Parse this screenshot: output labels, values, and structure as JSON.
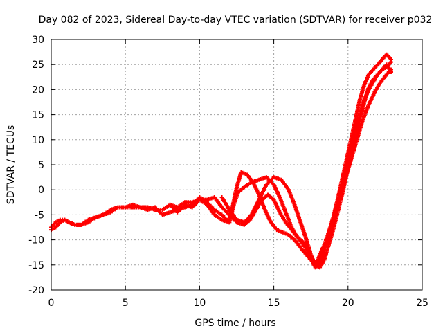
{
  "chart_data": {
    "type": "scatter",
    "title": "Day 082 of 2023, Sidereal Day-to-day VTEC variation (SDTVAR) for receiver p032",
    "xlabel": "GPS time / hours",
    "ylabel": "SDTVAR / TECUs",
    "xlim": [
      0,
      25
    ],
    "ylim": [
      -20,
      30
    ],
    "xticks": [
      0,
      5,
      10,
      15,
      20,
      25
    ],
    "yticks": [
      -20,
      -15,
      -10,
      -5,
      0,
      5,
      10,
      15,
      20,
      25,
      30
    ],
    "grid": true,
    "legend": "none",
    "marker": "+",
    "color": "#ff0000",
    "series": [
      {
        "name": "trace-a",
        "x": [
          0.0,
          0.3,
          0.6,
          0.9,
          1.2,
          1.6,
          2.0,
          2.5,
          3.0,
          3.5,
          4.0,
          4.5,
          5.0,
          5.5,
          6.0,
          6.5,
          7.0,
          7.5,
          8.0,
          8.5,
          9.0,
          9.5,
          10.0,
          10.5,
          11.0,
          11.5,
          12.0,
          12.3,
          12.6,
          13.0,
          13.5,
          14.0,
          14.5,
          15.0,
          15.4,
          15.8,
          16.2,
          16.6,
          17.0,
          17.3,
          17.6,
          17.8,
          18.0,
          18.3,
          18.6,
          19.0,
          19.3,
          19.6,
          19.9,
          20.2,
          20.5,
          20.8,
          21.1,
          21.4,
          21.7,
          22.0,
          22.3,
          22.6,
          22.9
        ],
        "y": [
          -7.5,
          -6.5,
          -6.0,
          -6.0,
          -6.5,
          -7.0,
          -7.0,
          -6.0,
          -5.5,
          -5.0,
          -4.0,
          -3.5,
          -3.5,
          -3.5,
          -3.5,
          -3.5,
          -4.0,
          -4.0,
          -3.0,
          -3.5,
          -2.5,
          -2.5,
          -2.0,
          -3.0,
          -5.0,
          -6.0,
          -6.5,
          -3.0,
          -0.5,
          0.5,
          1.5,
          2.0,
          2.5,
          1.0,
          -1.5,
          -4.5,
          -7.5,
          -9.5,
          -10.5,
          -12.0,
          -14.0,
          -15.5,
          -15.0,
          -13.5,
          -10.0,
          -6.0,
          -2.0,
          2.0,
          6.0,
          10.0,
          14.0,
          18.0,
          21.0,
          23.0,
          24.0,
          25.0,
          26.0,
          27.0,
          26.0
        ]
      },
      {
        "name": "trace-b",
        "x": [
          0.0,
          0.3,
          0.6,
          0.9,
          1.2,
          1.6,
          2.0,
          2.5,
          3.0,
          3.5,
          4.0,
          4.5,
          5.0,
          5.5,
          6.0,
          6.5,
          7.0,
          7.5,
          8.0,
          8.5,
          9.0,
          9.5,
          10.0,
          10.5,
          11.0,
          11.5,
          12.0,
          12.5,
          12.8,
          13.2,
          13.6,
          14.0,
          14.4,
          14.8,
          15.2,
          15.6,
          16.0,
          16.4,
          16.8,
          17.2,
          17.5,
          17.7,
          17.9,
          18.1,
          18.4,
          18.7,
          19.0,
          19.3,
          19.6,
          19.9,
          20.2,
          20.5,
          20.8,
          21.1,
          21.4,
          21.7,
          22.0,
          22.3,
          22.6,
          22.9
        ],
        "y": [
          -8.0,
          -7.5,
          -6.5,
          -6.0,
          -6.5,
          -7.0,
          -7.0,
          -6.5,
          -5.5,
          -5.0,
          -4.5,
          -3.5,
          -3.5,
          -3.0,
          -3.5,
          -4.0,
          -3.5,
          -5.0,
          -4.5,
          -4.0,
          -3.5,
          -3.0,
          -1.5,
          -2.5,
          -4.0,
          -5.0,
          -6.5,
          0.5,
          3.5,
          3.0,
          1.5,
          -1.0,
          -4.0,
          -6.5,
          -8.0,
          -8.5,
          -9.0,
          -10.0,
          -11.5,
          -13.0,
          -14.0,
          -15.0,
          -14.5,
          -13.0,
          -11.0,
          -8.5,
          -5.5,
          -2.0,
          1.0,
          4.5,
          8.0,
          12.0,
          15.0,
          18.0,
          20.0,
          21.5,
          23.0,
          24.0,
          24.5,
          25.5
        ]
      },
      {
        "name": "trace-c",
        "x": [
          8.0,
          8.5,
          9.0,
          9.5,
          10.0,
          10.5,
          11.0,
          11.5,
          12.0,
          12.5,
          13.0,
          13.4,
          13.8,
          14.2,
          14.6,
          15.0,
          15.4,
          15.8,
          16.2,
          16.6,
          17.0,
          17.3,
          17.6,
          17.9,
          18.2,
          18.6,
          19.0,
          19.4,
          19.8,
          20.2,
          20.6,
          21.0,
          21.4,
          21.8,
          22.2,
          22.6,
          22.9
        ],
        "y": [
          -3.0,
          -4.5,
          -3.0,
          -3.5,
          -2.0,
          -2.0,
          -1.5,
          -3.5,
          -5.0,
          -6.5,
          -7.0,
          -6.0,
          -4.0,
          -2.0,
          -1.0,
          -2.0,
          -4.5,
          -6.5,
          -8.0,
          -9.5,
          -11.0,
          -12.5,
          -14.0,
          -14.5,
          -13.0,
          -10.0,
          -6.5,
          -2.5,
          2.0,
          6.0,
          10.0,
          14.0,
          17.0,
          19.5,
          21.5,
          23.0,
          24.0
        ]
      },
      {
        "name": "trace-d",
        "x": [
          11.5,
          12.0,
          12.5,
          13.0,
          13.5,
          14.0,
          14.5,
          15.0,
          15.5,
          16.0,
          16.4,
          16.8,
          17.2,
          17.5,
          17.8,
          18.1,
          18.4,
          18.7,
          19.0,
          19.3,
          19.6,
          19.9,
          20.2,
          20.5,
          20.8,
          21.1,
          21.4,
          21.7,
          22.0,
          22.3,
          22.6,
          22.9
        ],
        "y": [
          -1.5,
          -4.0,
          -6.0,
          -6.5,
          -5.0,
          -2.0,
          1.0,
          2.5,
          2.0,
          0.0,
          -3.0,
          -6.5,
          -10.0,
          -13.0,
          -15.0,
          -15.5,
          -14.0,
          -11.0,
          -8.0,
          -4.5,
          -1.0,
          3.0,
          6.5,
          10.5,
          14.0,
          17.5,
          20.5,
          22.0,
          23.0,
          24.0,
          25.0,
          23.5
        ]
      }
    ]
  }
}
